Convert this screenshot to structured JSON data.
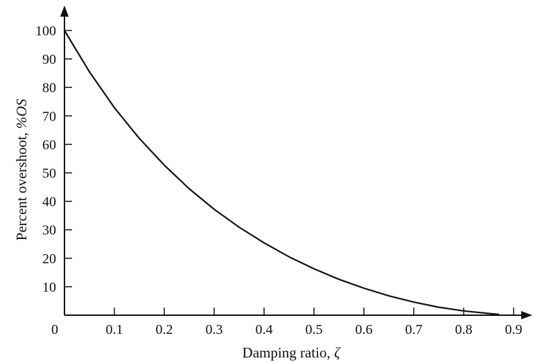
{
  "chart_data": {
    "type": "line",
    "title": "",
    "xlabel_text": "Damping ratio, ",
    "xlabel_symbol": "ζ",
    "ylabel_text": "Percent overshoot, ",
    "ylabel_symbol": "%OS",
    "xlim": [
      0,
      0.9
    ],
    "ylim": [
      0,
      100
    ],
    "x_ticks": [
      0.1,
      0.2,
      0.3,
      0.4,
      0.5,
      0.6,
      0.7,
      0.8,
      0.9
    ],
    "x_tick_labels": [
      "0.1",
      "0.2",
      "0.3",
      "0.4",
      "0.5",
      "0.6",
      "0.7",
      "0.8",
      "0.9"
    ],
    "y_ticks": [
      10,
      20,
      30,
      40,
      50,
      60,
      70,
      80,
      90,
      100
    ],
    "y_tick_labels": [
      "10",
      "20",
      "30",
      "40",
      "50",
      "60",
      "70",
      "80",
      "90",
      "100"
    ],
    "origin_label": "0",
    "grid": false,
    "series": [
      {
        "x": [
          0,
          0.05,
          0.1,
          0.15,
          0.2,
          0.25,
          0.3,
          0.35,
          0.4,
          0.45,
          0.5,
          0.55,
          0.6,
          0.65,
          0.7,
          0.75,
          0.8,
          0.85,
          0.87
        ],
        "y": [
          100,
          85.5,
          72.9,
          62.1,
          52.7,
          44.4,
          37.2,
          30.9,
          25.4,
          20.5,
          16.3,
          12.6,
          9.5,
          6.8,
          4.6,
          2.8,
          1.5,
          0.6,
          0.3
        ]
      }
    ]
  }
}
